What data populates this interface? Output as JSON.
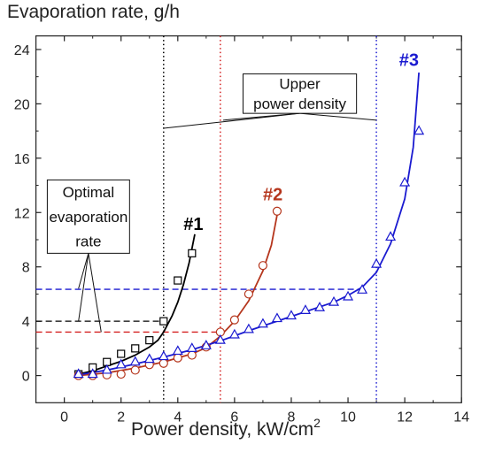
{
  "chart_data": {
    "type": "scatter",
    "title": "",
    "ylabel": "Evaporation rate, g/h",
    "xlabel_main": "Power density, kW/cm",
    "xlabel_sup": "2",
    "xlim": [
      -1,
      14
    ],
    "ylim": [
      -2,
      25
    ],
    "xticks": [
      0,
      2,
      4,
      6,
      8,
      10,
      12,
      14
    ],
    "yticks": [
      0,
      4,
      8,
      12,
      16,
      20,
      24
    ],
    "grid": false,
    "series": [
      {
        "name": "#1",
        "color": "#000000",
        "marker": "square",
        "points": [
          [
            0.5,
            0.1
          ],
          [
            1.0,
            0.6
          ],
          [
            1.5,
            1.0
          ],
          [
            2.0,
            1.6
          ],
          [
            2.5,
            2.0
          ],
          [
            3.0,
            2.6
          ],
          [
            3.5,
            4.0
          ],
          [
            4.0,
            7.0
          ],
          [
            4.5,
            9.0
          ]
        ],
        "fit": [
          [
            0.5,
            0.1
          ],
          [
            1.0,
            0.35
          ],
          [
            1.5,
            0.7
          ],
          [
            2.0,
            1.05
          ],
          [
            2.5,
            1.5
          ],
          [
            3.0,
            2.1
          ],
          [
            3.3,
            2.6
          ],
          [
            3.5,
            3.2
          ],
          [
            3.8,
            4.4
          ],
          [
            4.0,
            5.4
          ],
          [
            4.2,
            6.7
          ],
          [
            4.4,
            8.3
          ],
          [
            4.6,
            10.4
          ]
        ],
        "label_xy": [
          4.55,
          10.7
        ]
      },
      {
        "name": "#2",
        "color": "#b5361d",
        "marker": "circle",
        "points": [
          [
            0.5,
            0.0
          ],
          [
            1.0,
            0.0
          ],
          [
            1.5,
            0.05
          ],
          [
            2.0,
            0.1
          ],
          [
            2.5,
            0.4
          ],
          [
            3.0,
            0.8
          ],
          [
            3.5,
            0.9
          ],
          [
            4.0,
            1.3
          ],
          [
            4.5,
            1.5
          ],
          [
            5.0,
            2.1
          ],
          [
            5.5,
            3.2
          ],
          [
            6.0,
            4.1
          ],
          [
            6.5,
            6.0
          ],
          [
            7.0,
            8.1
          ],
          [
            7.5,
            12.1
          ]
        ],
        "fit": [
          [
            0.5,
            0.0
          ],
          [
            1.5,
            0.2
          ],
          [
            2.5,
            0.55
          ],
          [
            3.5,
            1.0
          ],
          [
            4.5,
            1.6
          ],
          [
            5.0,
            2.05
          ],
          [
            5.5,
            2.9
          ],
          [
            6.0,
            4.0
          ],
          [
            6.5,
            5.5
          ],
          [
            7.0,
            7.7
          ],
          [
            7.3,
            9.6
          ],
          [
            7.5,
            11.8
          ]
        ],
        "label_xy": [
          7.35,
          12.9
        ]
      },
      {
        "name": "#3",
        "color": "#1a1ad0",
        "marker": "triangle",
        "points": [
          [
            0.5,
            0.1
          ],
          [
            1.0,
            0.1
          ],
          [
            1.5,
            0.4
          ],
          [
            2.0,
            0.8
          ],
          [
            2.5,
            1.0
          ],
          [
            3.0,
            1.2
          ],
          [
            3.5,
            1.4
          ],
          [
            4.0,
            1.8
          ],
          [
            4.5,
            2.0
          ],
          [
            5.0,
            2.2
          ],
          [
            5.5,
            2.6
          ],
          [
            6.0,
            3.0
          ],
          [
            6.5,
            3.4
          ],
          [
            7.0,
            3.8
          ],
          [
            7.5,
            4.2
          ],
          [
            8.0,
            4.4
          ],
          [
            8.5,
            4.8
          ],
          [
            9.0,
            5.0
          ],
          [
            9.5,
            5.4
          ],
          [
            10.0,
            5.8
          ],
          [
            10.5,
            6.3
          ],
          [
            11.0,
            8.2
          ],
          [
            11.5,
            10.2
          ],
          [
            12.0,
            14.2
          ],
          [
            12.5,
            18.0
          ]
        ],
        "fit": [
          [
            0.5,
            0.05
          ],
          [
            1.5,
            0.4
          ],
          [
            2.5,
            0.85
          ],
          [
            3.5,
            1.35
          ],
          [
            4.5,
            1.9
          ],
          [
            5.5,
            2.55
          ],
          [
            6.5,
            3.3
          ],
          [
            7.5,
            4.0
          ],
          [
            8.5,
            4.7
          ],
          [
            9.5,
            5.4
          ],
          [
            10.0,
            5.9
          ],
          [
            10.5,
            6.5
          ],
          [
            11.0,
            7.6
          ],
          [
            11.5,
            9.7
          ],
          [
            12.0,
            13.0
          ],
          [
            12.3,
            16.8
          ],
          [
            12.5,
            22.3
          ]
        ],
        "label_xy": [
          12.15,
          22.8
        ]
      }
    ],
    "vertical_lines": [
      {
        "x": 3.5,
        "color": "#000000"
      },
      {
        "x": 5.5,
        "color": "#d42020"
      },
      {
        "x": 11.0,
        "color": "#1a1ad0"
      }
    ],
    "horizontal_lines": [
      {
        "y": 6.35,
        "x_to": 10.5,
        "color": "#1a1ad0"
      },
      {
        "y": 4.0,
        "x_to": 3.5,
        "color": "#000000"
      },
      {
        "y": 3.2,
        "x_to": 5.5,
        "color": "#d42020"
      }
    ],
    "annotations": [
      {
        "lines": [
          "Upper",
          "power density"
        ],
        "box": [
          6.3,
          22.2,
          10.3,
          19.3
        ],
        "leaders": [
          [
            3.5,
            18.2
          ],
          [
            5.6,
            18.8
          ],
          [
            11.0,
            18.8
          ]
        ]
      },
      {
        "lines": [
          "Optimal",
          "evaporation",
          "rate"
        ],
        "box": [
          -0.6,
          14.4,
          2.3,
          9.0
        ],
        "leaders": [
          [
            0.5,
            6.4
          ],
          [
            0.5,
            4.0
          ],
          [
            1.3,
            3.2
          ]
        ]
      }
    ]
  }
}
